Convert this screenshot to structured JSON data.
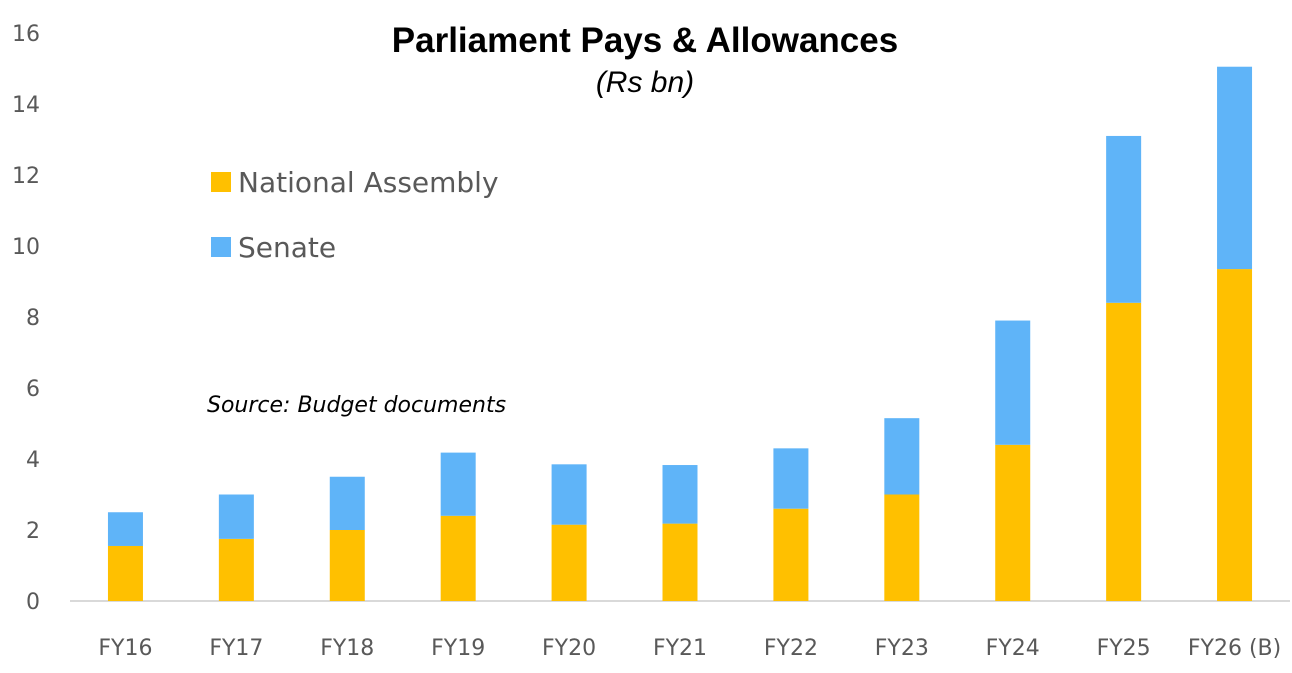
{
  "chart_data": {
    "type": "bar",
    "stacked": true,
    "title": "Parliament Pays & Allowances",
    "subtitle": "(Rs bn)",
    "xlabel": "",
    "ylabel": "",
    "ylim": [
      0,
      16
    ],
    "yticks": [
      "0",
      "2",
      "4",
      "6",
      "8",
      "10",
      "12",
      "14",
      "16"
    ],
    "categories": [
      "FY16",
      "FY17",
      "FY18",
      "FY19",
      "FY20",
      "FY21",
      "FY22",
      "FY23",
      "FY24",
      "FY25",
      "FY26 (B)"
    ],
    "series": [
      {
        "name": "National Assembly",
        "color": "#FFC000",
        "values": [
          1.55,
          1.75,
          2.0,
          2.4,
          2.15,
          2.18,
          2.6,
          3.0,
          4.4,
          8.4,
          9.35
        ]
      },
      {
        "name": "Senate",
        "color": "#5FB4F8",
        "values": [
          0.95,
          1.25,
          1.5,
          1.78,
          1.7,
          1.65,
          1.7,
          2.15,
          3.5,
          4.7,
          5.7
        ]
      }
    ],
    "grid": false,
    "legend_position": "top-left",
    "annotation": "Source: Budget documents"
  }
}
